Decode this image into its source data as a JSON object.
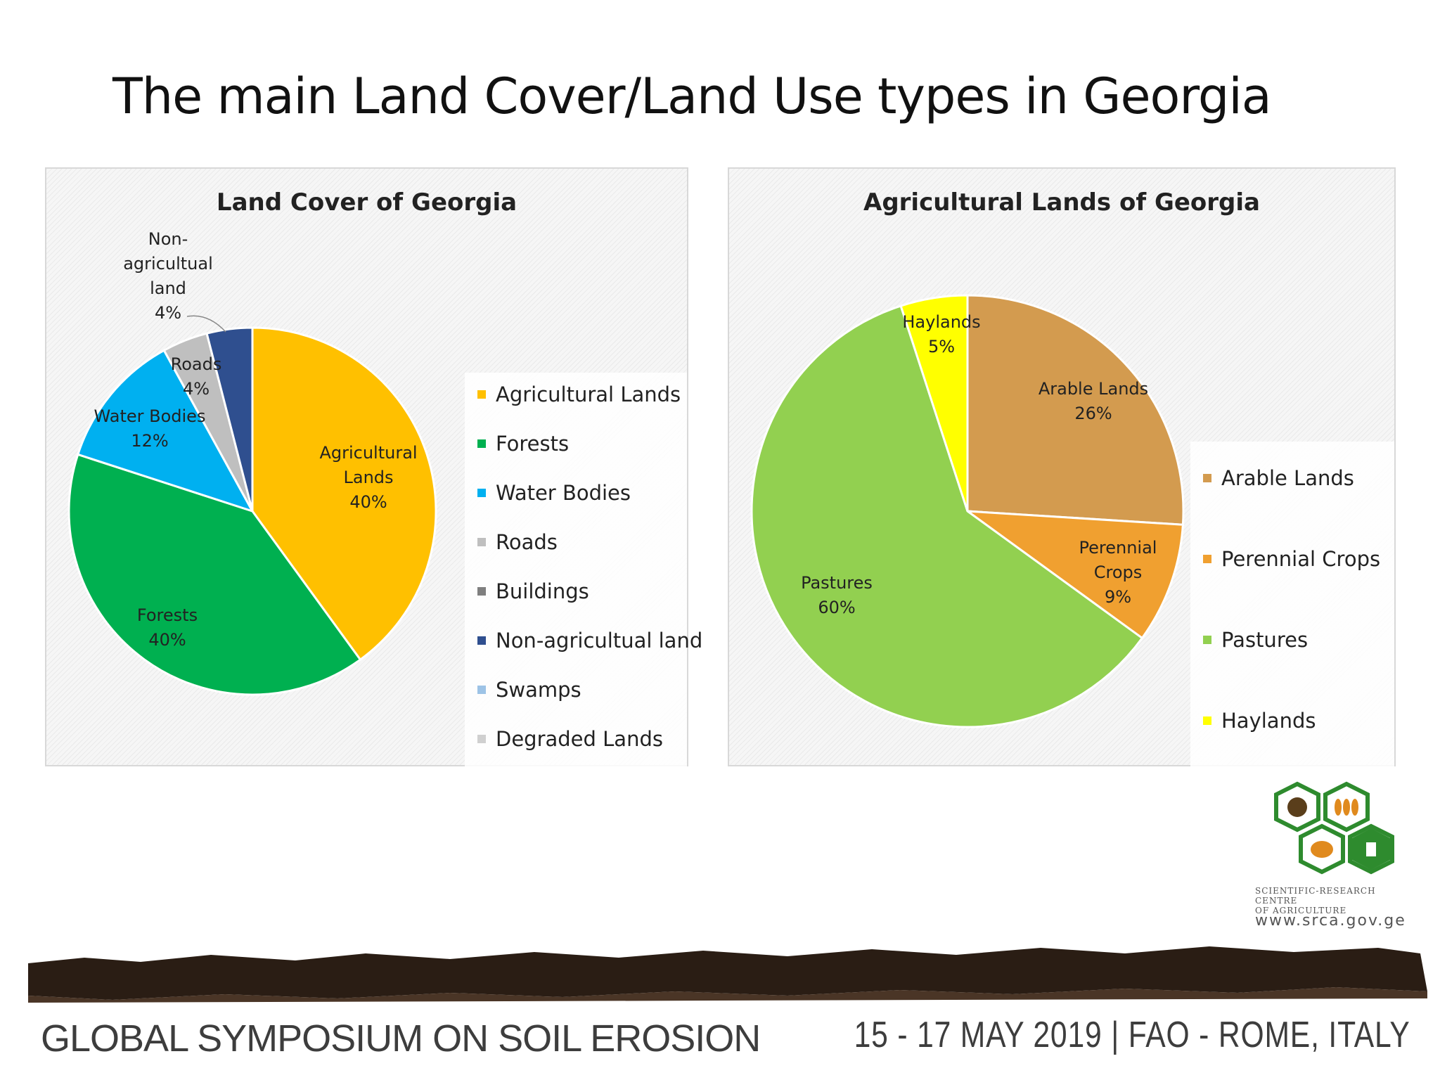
{
  "slide": {
    "title": "The main Land Cover/Land Use types in Georgia"
  },
  "chart_data": [
    {
      "type": "pie",
      "title": "Land Cover of Georgia",
      "categories": [
        "Agricultural Lands",
        "Forests",
        "Water Bodies",
        "Roads",
        "Buildings",
        "Non-agricultual land",
        "Swamps",
        "Degraded Lands"
      ],
      "values": [
        40,
        40,
        12,
        4,
        0,
        4,
        0,
        0
      ],
      "colors": [
        "#FFC000",
        "#00B050",
        "#00B0F0",
        "#BFBFBF",
        "#7F7F7F",
        "#2F4F8F",
        "#9DC3E6",
        "#D0D0D0"
      ],
      "data_labels": [
        {
          "lines": [
            "Agricultural",
            "Lands",
            "40%"
          ]
        },
        {
          "lines": [
            "Forests",
            "40%"
          ]
        },
        {
          "lines": [
            "Water Bodies",
            "12%"
          ]
        },
        {
          "lines": [
            "Roads",
            "4%"
          ]
        },
        {
          "lines": []
        },
        {
          "lines": [
            "Non-",
            "agricultual",
            "land",
            "4%"
          ]
        },
        {
          "lines": []
        },
        {
          "lines": []
        }
      ],
      "legend_position": "right"
    },
    {
      "type": "pie",
      "title": "Agricultural Lands of Georgia",
      "categories": [
        "Arable Lands",
        "Perennial Crops",
        "Pastures",
        "Haylands"
      ],
      "values": [
        26,
        9,
        60,
        5
      ],
      "colors": [
        "#D39B4F",
        "#F0A030",
        "#92D050",
        "#FFFF00"
      ],
      "data_labels": [
        {
          "lines": [
            "Arable Lands",
            "26%"
          ]
        },
        {
          "lines": [
            "Perennial",
            "Crops",
            "9%"
          ]
        },
        {
          "lines": [
            "Pastures",
            "60%"
          ]
        },
        {
          "lines": [
            "Haylands",
            "5%"
          ]
        }
      ],
      "legend_position": "right"
    }
  ],
  "logo": {
    "caption_line1": "Scientific-Research Centre",
    "caption_line2": "of Agriculture",
    "url": "www.srca.gov.ge"
  },
  "footer": {
    "event": "GLOBAL SYMPOSIUM ON SOIL EROSION",
    "date_place": "15 - 17 MAY 2019 | FAO - ROME, ITALY"
  }
}
